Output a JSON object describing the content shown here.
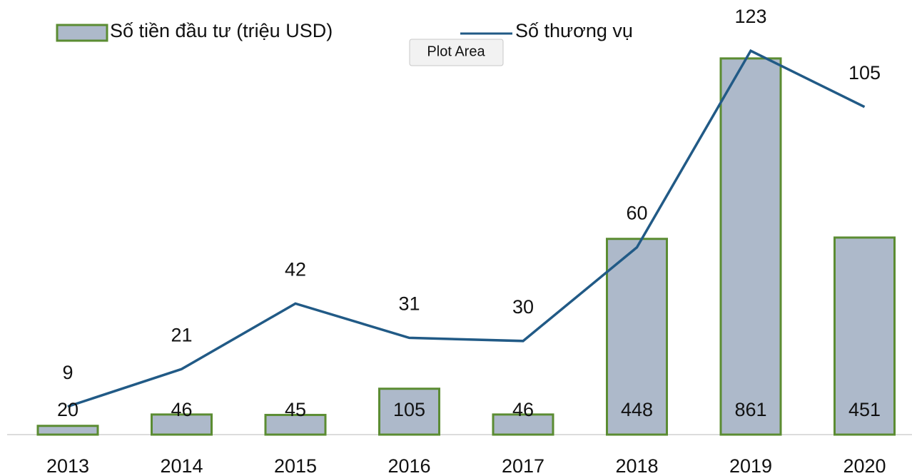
{
  "chart_data": {
    "type": "bar-line",
    "categories": [
      "2013",
      "2014",
      "2015",
      "2016",
      "2017",
      "2018",
      "2019",
      "2020"
    ],
    "series": [
      {
        "name": "Số tiền đầu tư (triệu USD)",
        "type": "bar",
        "color": "#adb9ca",
        "edge_color": "#5b8c32",
        "values": [
          20,
          46,
          45,
          105,
          46,
          448,
          861,
          451
        ]
      },
      {
        "name": "Số thương vụ",
        "type": "line",
        "axis": "y2",
        "color": "#215a86",
        "values": [
          9,
          21,
          42,
          31,
          30,
          60,
          123,
          105
        ]
      }
    ],
    "ylim": [
      0,
      900
    ],
    "y2lim": [
      0,
      126
    ],
    "legend": "top",
    "tooltip": "Plot Area"
  }
}
